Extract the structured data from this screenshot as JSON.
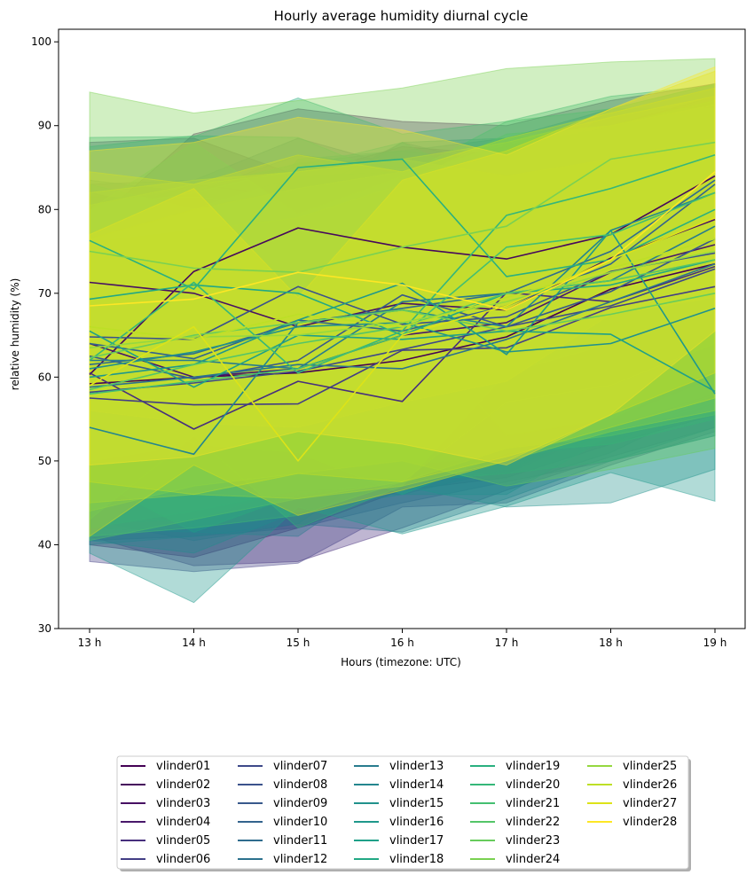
{
  "chart_data": {
    "type": "line",
    "title": "Hourly average humidity diurnal cycle",
    "xlabel": "Hours (timezone: UTC)",
    "ylabel": "relative humidity (%)",
    "categories": [
      "13 h",
      "14 h",
      "15 h",
      "16 h",
      "17 h",
      "18 h",
      "19 h"
    ],
    "ylim": [
      30,
      101.5
    ],
    "yticks": [
      30,
      40,
      50,
      60,
      70,
      80,
      90,
      100
    ],
    "grid": false,
    "legend": "bottom-center, 5 columns",
    "colormap": "viridis",
    "band_opacity": 0.35,
    "series": [
      {
        "name": "vlinder01",
        "color": "#440154",
        "values": [
          59.2,
          60.0,
          60.5,
          62.0,
          64.8,
          70.5,
          73.5
        ],
        "band": {
          "low": [
            40.0,
            38.5,
            42.0,
            46.5,
            48.0,
            52.0,
            55.5
          ],
          "high": [
            79.0,
            83.0,
            81.5,
            82.0,
            84.0,
            87.5,
            91.5
          ]
        }
      },
      {
        "name": "vlinder02",
        "color": "#46085c",
        "values": [
          60.3,
          72.6,
          77.8,
          75.5,
          74.1,
          77.0,
          84.0
        ],
        "band": {
          "low": [
            44.0,
            55.5,
            62.0,
            60.0,
            58.0,
            61.0,
            69.0
          ],
          "high": [
            78.0,
            89.0,
            92.0,
            90.5,
            90.0,
            93.0,
            95.0
          ]
        }
      },
      {
        "name": "vlinder03",
        "color": "#471063",
        "values": [
          71.3,
          70.0,
          66.0,
          68.8,
          68.0,
          74.2,
          78.8
        ],
        "band": {
          "low": [
            52.0,
            50.0,
            47.0,
            49.0,
            48.5,
            55.0,
            60.0
          ],
          "high": [
            88.0,
            88.5,
            84.0,
            87.5,
            86.5,
            90.0,
            93.5
          ]
        }
      },
      {
        "name": "vlinder04",
        "color": "#48186a",
        "values": [
          64.0,
          60.0,
          61.0,
          65.0,
          66.5,
          72.5,
          75.8
        ],
        "band": {
          "low": [
            46.0,
            42.0,
            43.5,
            47.5,
            48.5,
            54.0,
            58.0
          ],
          "high": [
            82.0,
            79.5,
            80.0,
            82.0,
            84.0,
            88.5,
            91.0
          ]
        }
      },
      {
        "name": "vlinder05",
        "color": "#472f7d",
        "values": [
          60.5,
          53.8,
          59.5,
          57.1,
          70.1,
          69.0,
          73.2
        ],
        "band": {
          "low": [
            41.0,
            37.5,
            38.0,
            42.0,
            46.5,
            50.5,
            54.0
          ],
          "high": [
            80.0,
            72.0,
            79.0,
            74.0,
            88.0,
            85.0,
            90.0
          ]
        }
      },
      {
        "name": "vlinder06",
        "color": "#433e85",
        "values": [
          57.5,
          56.7,
          56.8,
          63.2,
          63.5,
          68.3,
          70.8
        ],
        "band": {
          "low": [
            38.0,
            36.8,
            37.8,
            44.5,
            45.0,
            49.5,
            53.5
          ],
          "high": [
            77.5,
            77.0,
            76.0,
            81.5,
            82.5,
            85.5,
            88.5
          ]
        }
      },
      {
        "name": "vlinder07",
        "color": "#3e4989",
        "values": [
          58.2,
          59.3,
          60.7,
          63.3,
          66.0,
          68.5,
          72.9
        ],
        "band": {
          "low": [
            40.5,
            41.0,
            42.0,
            45.0,
            47.5,
            50.0,
            53.0
          ],
          "high": [
            76.5,
            77.5,
            79.5,
            81.5,
            84.0,
            87.0,
            90.5
          ]
        }
      },
      {
        "name": "vlinder08",
        "color": "#3b528b",
        "values": [
          64.8,
          64.5,
          70.8,
          66.3,
          67.2,
          72.6,
          74.8
        ],
        "band": {
          "low": [
            46.5,
            45.5,
            51.0,
            48.0,
            48.5,
            53.5,
            56.0
          ],
          "high": [
            83.0,
            83.5,
            88.5,
            85.0,
            86.0,
            89.5,
            92.0
          ]
        }
      },
      {
        "name": "vlinder09",
        "color": "#38598c",
        "values": [
          62.5,
          59.8,
          62.0,
          69.8,
          66.0,
          70.2,
          76.5
        ],
        "band": {
          "low": [
            43.0,
            40.5,
            42.5,
            51.0,
            47.0,
            51.0,
            57.0
          ],
          "high": [
            82.0,
            79.0,
            81.5,
            88.0,
            85.0,
            89.0,
            92.5
          ]
        }
      },
      {
        "name": "vlinder10",
        "color": "#33638d",
        "values": [
          64.0,
          62.2,
          66.8,
          65.5,
          68.5,
          73.5,
          83.0
        ],
        "band": {
          "low": [
            44.0,
            42.5,
            46.0,
            46.0,
            49.0,
            54.0,
            63.0
          ],
          "high": [
            83.5,
            82.0,
            86.5,
            85.0,
            87.5,
            91.5,
            94.5
          ]
        }
      },
      {
        "name": "vlinder11",
        "color": "#2f6c8e",
        "values": [
          61.5,
          62.8,
          66.5,
          68.2,
          70.0,
          75.0,
          83.5
        ],
        "band": {
          "low": [
            42.5,
            43.0,
            47.0,
            49.5,
            51.0,
            56.0,
            64.5
          ],
          "high": [
            80.5,
            82.0,
            85.5,
            87.0,
            88.5,
            92.0,
            95.0
          ]
        }
      },
      {
        "name": "vlinder12",
        "color": "#2c728e",
        "values": [
          58.8,
          60.0,
          61.5,
          61.0,
          64.5,
          69.0,
          73.5
        ],
        "band": {
          "low": [
            40.0,
            41.0,
            42.5,
            41.5,
            45.5,
            50.0,
            54.0
          ],
          "high": [
            78.0,
            79.0,
            80.5,
            80.0,
            83.0,
            87.0,
            91.0
          ]
        }
      },
      {
        "name": "vlinder13",
        "color": "#287c8e",
        "values": [
          62.0,
          62.0,
          61.0,
          69.0,
          70.0,
          71.5,
          78.0
        ],
        "band": {
          "low": [
            42.0,
            41.5,
            41.0,
            49.5,
            50.5,
            52.0,
            58.0
          ],
          "high": [
            81.5,
            81.5,
            80.5,
            88.0,
            88.5,
            89.5,
            93.0
          ]
        }
      },
      {
        "name": "vlinder14",
        "color": "#24868e",
        "values": [
          54.0,
          50.8,
          66.5,
          68.0,
          66.0,
          77.5,
          82.0
        ],
        "band": {
          "low": [
            40.5,
            39.0,
            44.0,
            46.0,
            46.0,
            53.0,
            57.0
          ],
          "high": [
            72.0,
            70.0,
            86.0,
            87.0,
            85.5,
            90.0,
            93.0
          ]
        }
      },
      {
        "name": "vlinder15",
        "color": "#21918c",
        "values": [
          61.0,
          63.0,
          66.0,
          66.5,
          63.0,
          64.0,
          68.2
        ],
        "band": {
          "low": [
            42.0,
            44.0,
            46.5,
            47.0,
            44.5,
            45.0,
            49.0
          ],
          "high": [
            80.5,
            82.5,
            85.5,
            86.0,
            82.0,
            83.5,
            87.0
          ]
        }
      },
      {
        "name": "vlinder16",
        "color": "#1f988b",
        "values": [
          60.0,
          61.5,
          66.8,
          71.2,
          62.7,
          77.5,
          58.0
        ],
        "band": {
          "low": [
            39.0,
            33.1,
            44.5,
            41.3,
            44.6,
            48.6,
            45.2
          ],
          "high": [
            80.0,
            82.0,
            85.0,
            88.0,
            82.0,
            92.0,
            92.0
          ]
        }
      },
      {
        "name": "vlinder17",
        "color": "#1fa088",
        "values": [
          65.5,
          58.8,
          65.0,
          64.5,
          65.5,
          65.1,
          58.3
        ],
        "band": {
          "low": [
            48.0,
            41.5,
            46.0,
            47.5,
            48.5,
            50.0,
            53.0
          ],
          "high": [
            83.0,
            80.0,
            84.0,
            84.5,
            84.0,
            83.0,
            85.0
          ]
        }
      },
      {
        "name": "vlinder18",
        "color": "#22a884",
        "values": [
          69.3,
          71.0,
          70.0,
          65.0,
          70.0,
          71.0,
          74.0
        ],
        "band": {
          "low": [
            50.0,
            52.0,
            51.0,
            46.0,
            51.0,
            52.0,
            55.0
          ],
          "high": [
            87.5,
            88.8,
            88.6,
            83.5,
            88.0,
            89.5,
            92.0
          ]
        }
      },
      {
        "name": "vlinder19",
        "color": "#2ab07f",
        "values": [
          76.3,
          70.5,
          85.0,
          86.0,
          72.0,
          74.0,
          80.0
        ],
        "band": {
          "low": [
            58.0,
            52.0,
            66.0,
            67.0,
            53.0,
            55.0,
            61.0
          ],
          "high": [
            88.6,
            88.7,
            93.3,
            89.0,
            90.5,
            93.5,
            94.8
          ]
        }
      },
      {
        "name": "vlinder20",
        "color": "#35b779",
        "values": [
          62.0,
          71.3,
          60.5,
          65.5,
          79.3,
          82.5,
          86.5
        ],
        "band": {
          "low": [
            43.0,
            53.0,
            42.0,
            47.0,
            60.5,
            64.0,
            68.0
          ],
          "high": [
            80.0,
            88.0,
            79.5,
            84.0,
            90.5,
            92.0,
            95.0
          ]
        }
      },
      {
        "name": "vlinder21",
        "color": "#44bf70",
        "values": [
          58.0,
          59.5,
          61.0,
          65.0,
          75.5,
          77.0,
          82.0
        ],
        "band": {
          "low": [
            41.0,
            42.0,
            43.5,
            47.5,
            57.0,
            59.0,
            64.0
          ],
          "high": [
            76.0,
            77.5,
            79.0,
            83.0,
            89.0,
            90.0,
            93.0
          ]
        }
      },
      {
        "name": "vlinder22",
        "color": "#54c568",
        "values": [
          58.5,
          61.5,
          64.0,
          66.0,
          70.0,
          71.5,
          74.0
        ],
        "band": {
          "low": [
            40.5,
            43.0,
            45.5,
            47.5,
            51.5,
            53.0,
            55.5
          ],
          "high": [
            76.5,
            80.0,
            82.5,
            84.5,
            88.5,
            90.0,
            92.5
          ]
        }
      },
      {
        "name": "vlinder23",
        "color": "#67cc5c",
        "values": [
          62.3,
          65.0,
          66.5,
          68.0,
          65.5,
          67.5,
          70.0
        ],
        "band": {
          "low": [
            44.0,
            47.0,
            48.5,
            50.0,
            47.0,
            49.0,
            51.5
          ],
          "high": [
            80.5,
            83.0,
            84.5,
            86.0,
            84.0,
            86.0,
            88.5
          ]
        }
      },
      {
        "name": "vlinder24",
        "color": "#7ad151",
        "values": [
          75.0,
          73.0,
          72.5,
          75.5,
          78.0,
          86.0,
          88.0
        ],
        "band": {
          "low": [
            56.0,
            54.5,
            54.0,
            57.0,
            59.5,
            67.5,
            69.5
          ],
          "high": [
            94.0,
            91.5,
            93.0,
            94.5,
            96.8,
            97.6,
            98.0
          ]
        }
      },
      {
        "name": "vlinder25",
        "color": "#95d840",
        "values": [
          63.5,
          64.8,
          65.0,
          66.5,
          69.0,
          72.5,
          75.0
        ],
        "band": {
          "low": [
            45.0,
            46.0,
            45.5,
            47.0,
            50.0,
            53.5,
            56.0
          ],
          "high": [
            82.0,
            83.5,
            84.5,
            86.0,
            88.0,
            91.0,
            93.5
          ]
        }
      },
      {
        "name": "vlinder26",
        "color": "#bddf26",
        "values": [
          66.0,
          64.5,
          67.5,
          66.0,
          69.5,
          73.0,
          76.5
        ],
        "band": {
          "low": [
            47.5,
            46.0,
            48.5,
            47.5,
            50.5,
            54.0,
            57.5
          ],
          "high": [
            84.5,
            83.0,
            86.5,
            84.5,
            88.5,
            91.5,
            94.5
          ]
        }
      },
      {
        "name": "vlinder27",
        "color": "#dde318",
        "values": [
          59.0,
          66.0,
          50.0,
          65.0,
          68.5,
          74.0,
          79.0
        ],
        "band": {
          "low": [
            41.0,
            49.5,
            43.5,
            46.5,
            50.0,
            55.5,
            60.5
          ],
          "high": [
            77.0,
            82.5,
            69.5,
            83.5,
            87.0,
            92.0,
            96.5
          ]
        }
      },
      {
        "name": "vlinder28",
        "color": "#fde725",
        "values": [
          68.5,
          69.3,
          72.5,
          71.0,
          68.0,
          74.0,
          84.5
        ],
        "band": {
          "low": [
            49.5,
            50.5,
            53.5,
            52.0,
            49.5,
            55.5,
            65.5
          ],
          "high": [
            87.0,
            88.0,
            91.0,
            89.5,
            86.5,
            92.0,
            97.0
          ]
        }
      }
    ]
  }
}
